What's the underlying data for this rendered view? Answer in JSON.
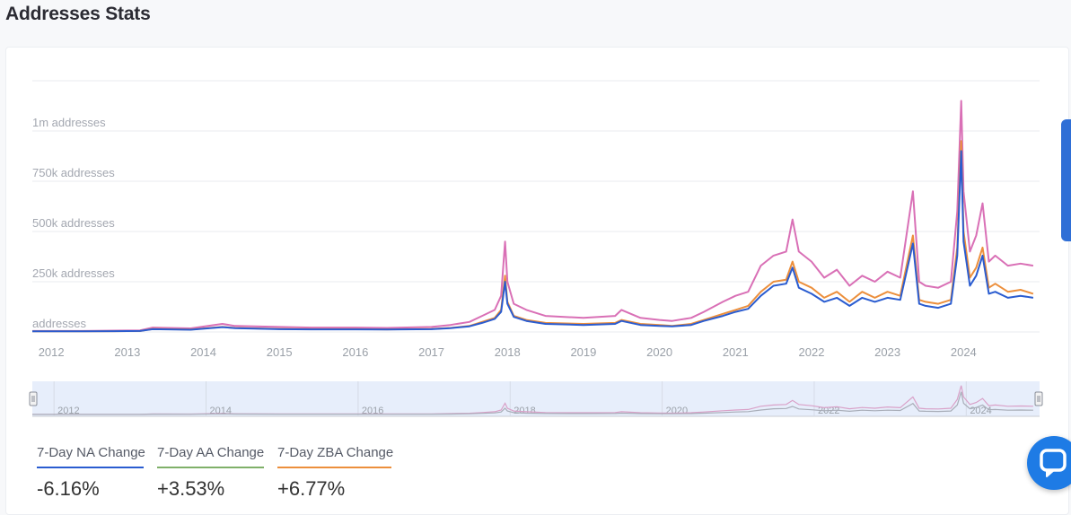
{
  "page": {
    "title": "Addresses Stats"
  },
  "colors": {
    "na": "#2a5cd0",
    "aa": "#d970b6",
    "zba": "#ec8f3c",
    "grid": "#e9ebef",
    "navigator_bg": "#e7eefb",
    "aa_bar": "#7fb069"
  },
  "stats": [
    {
      "label": "7-Day NA Change",
      "value": "-6.16%",
      "bar_color": "#2a5cd0"
    },
    {
      "label": "7-Day AA Change",
      "value": "+3.53%",
      "bar_color": "#7fb069"
    },
    {
      "label": "7-Day ZBA Change",
      "value": "+6.77%",
      "bar_color": "#ec8f3c"
    }
  ],
  "chart_data": {
    "type": "line",
    "y_tick_labels": [
      "addresses",
      "250k addresses",
      "500k addresses",
      "750k addresses",
      "1m addresses"
    ],
    "y_ticks": [
      0,
      250000,
      500000,
      750000,
      1000000
    ],
    "ylim": [
      0,
      1250000
    ],
    "x_tick_labels": [
      "2012",
      "2013",
      "2014",
      "2015",
      "2016",
      "2017",
      "2018",
      "2019",
      "2020",
      "2021",
      "2022",
      "2023",
      "2024"
    ],
    "xlim": [
      "2011-10",
      "2025-01"
    ],
    "navigator_tick_labels": [
      "2012",
      "2014",
      "2016",
      "2018",
      "2020",
      "2022",
      "2024"
    ],
    "grid": true,
    "legend": "none",
    "series": [
      {
        "key": "aa",
        "x": [
          "2011-10",
          "2012-06",
          "2013-03",
          "2013-05",
          "2013-11",
          "2014-04",
          "2014-06",
          "2015-01",
          "2015-06",
          "2016-01",
          "2016-06",
          "2017-01",
          "2017-04",
          "2017-07",
          "2017-09",
          "2017-11",
          "2017-12",
          "2017-12-20",
          "2018-01",
          "2018-02",
          "2018-04",
          "2018-07",
          "2019-01",
          "2019-06",
          "2019-07",
          "2019-10",
          "2020-01",
          "2020-03",
          "2020-06",
          "2020-08",
          "2020-11",
          "2021-01",
          "2021-03",
          "2021-05",
          "2021-07",
          "2021-09",
          "2021-10",
          "2021-11",
          "2022-01",
          "2022-03",
          "2022-05",
          "2022-07",
          "2022-09",
          "2022-11",
          "2023-01",
          "2023-03",
          "2023-05",
          "2023-06",
          "2023-07",
          "2023-09",
          "2023-11",
          "2023-12",
          "2023-12-20",
          "2024-01",
          "2024-02",
          "2024-03",
          "2024-04",
          "2024-05",
          "2024-06",
          "2024-08",
          "2024-10",
          "2024-12"
        ],
        "values": [
          5000,
          5000,
          8000,
          22000,
          18000,
          40000,
          30000,
          25000,
          22000,
          22000,
          20000,
          25000,
          35000,
          50000,
          80000,
          110000,
          180000,
          450000,
          250000,
          140000,
          110000,
          80000,
          70000,
          80000,
          110000,
          70000,
          60000,
          55000,
          70000,
          100000,
          150000,
          180000,
          200000,
          330000,
          380000,
          400000,
          560000,
          400000,
          350000,
          270000,
          310000,
          230000,
          280000,
          250000,
          300000,
          270000,
          700000,
          250000,
          230000,
          220000,
          250000,
          600000,
          1150000,
          700000,
          400000,
          480000,
          640000,
          350000,
          380000,
          330000,
          340000,
          330000
        ]
      },
      {
        "key": "zba",
        "x": [
          "2011-10",
          "2012-06",
          "2013-03",
          "2013-05",
          "2013-11",
          "2014-04",
          "2014-06",
          "2015-01",
          "2015-06",
          "2016-01",
          "2016-06",
          "2017-01",
          "2017-04",
          "2017-07",
          "2017-09",
          "2017-11",
          "2017-12",
          "2017-12-20",
          "2018-01",
          "2018-02",
          "2018-04",
          "2018-07",
          "2019-01",
          "2019-06",
          "2019-07",
          "2019-10",
          "2020-01",
          "2020-03",
          "2020-06",
          "2020-08",
          "2020-11",
          "2021-01",
          "2021-03",
          "2021-05",
          "2021-07",
          "2021-09",
          "2021-10",
          "2021-11",
          "2022-01",
          "2022-03",
          "2022-05",
          "2022-07",
          "2022-09",
          "2022-11",
          "2023-01",
          "2023-03",
          "2023-05",
          "2023-06",
          "2023-07",
          "2023-09",
          "2023-11",
          "2023-12",
          "2023-12-20",
          "2024-01",
          "2024-02",
          "2024-03",
          "2024-04",
          "2024-05",
          "2024-06",
          "2024-08",
          "2024-10",
          "2024-12"
        ],
        "values": [
          3000,
          3000,
          5000,
          15000,
          12000,
          25000,
          20000,
          15000,
          14000,
          14000,
          13000,
          15000,
          20000,
          30000,
          50000,
          70000,
          110000,
          280000,
          150000,
          80000,
          60000,
          45000,
          40000,
          45000,
          60000,
          40000,
          35000,
          30000,
          40000,
          60000,
          90000,
          110000,
          130000,
          200000,
          250000,
          260000,
          350000,
          250000,
          220000,
          170000,
          200000,
          150000,
          200000,
          170000,
          200000,
          180000,
          480000,
          160000,
          150000,
          140000,
          160000,
          420000,
          950000,
          500000,
          270000,
          320000,
          420000,
          220000,
          240000,
          200000,
          210000,
          190000
        ]
      },
      {
        "key": "na",
        "x": [
          "2011-10",
          "2012-06",
          "2013-03",
          "2013-05",
          "2013-11",
          "2014-04",
          "2014-06",
          "2015-01",
          "2015-06",
          "2016-01",
          "2016-06",
          "2017-01",
          "2017-04",
          "2017-07",
          "2017-09",
          "2017-11",
          "2017-12",
          "2017-12-20",
          "2018-01",
          "2018-02",
          "2018-04",
          "2018-07",
          "2019-01",
          "2019-06",
          "2019-07",
          "2019-10",
          "2020-01",
          "2020-03",
          "2020-06",
          "2020-08",
          "2020-11",
          "2021-01",
          "2021-03",
          "2021-05",
          "2021-07",
          "2021-09",
          "2021-10",
          "2021-11",
          "2022-01",
          "2022-03",
          "2022-05",
          "2022-07",
          "2022-09",
          "2022-11",
          "2023-01",
          "2023-03",
          "2023-05",
          "2023-06",
          "2023-07",
          "2023-09",
          "2023-11",
          "2023-12",
          "2023-12-20",
          "2024-01",
          "2024-02",
          "2024-03",
          "2024-04",
          "2024-05",
          "2024-06",
          "2024-08",
          "2024-10",
          "2024-12"
        ],
        "values": [
          3000,
          3000,
          5000,
          14000,
          11000,
          24000,
          19000,
          14000,
          13000,
          13000,
          12000,
          14000,
          19000,
          28000,
          45000,
          65000,
          100000,
          250000,
          140000,
          75000,
          55000,
          40000,
          35000,
          40000,
          55000,
          35000,
          30000,
          28000,
          35000,
          55000,
          80000,
          100000,
          115000,
          180000,
          230000,
          240000,
          320000,
          220000,
          190000,
          150000,
          170000,
          130000,
          170000,
          150000,
          170000,
          160000,
          440000,
          140000,
          130000,
          120000,
          140000,
          380000,
          900000,
          450000,
          230000,
          280000,
          380000,
          190000,
          200000,
          170000,
          180000,
          170000
        ]
      }
    ]
  }
}
